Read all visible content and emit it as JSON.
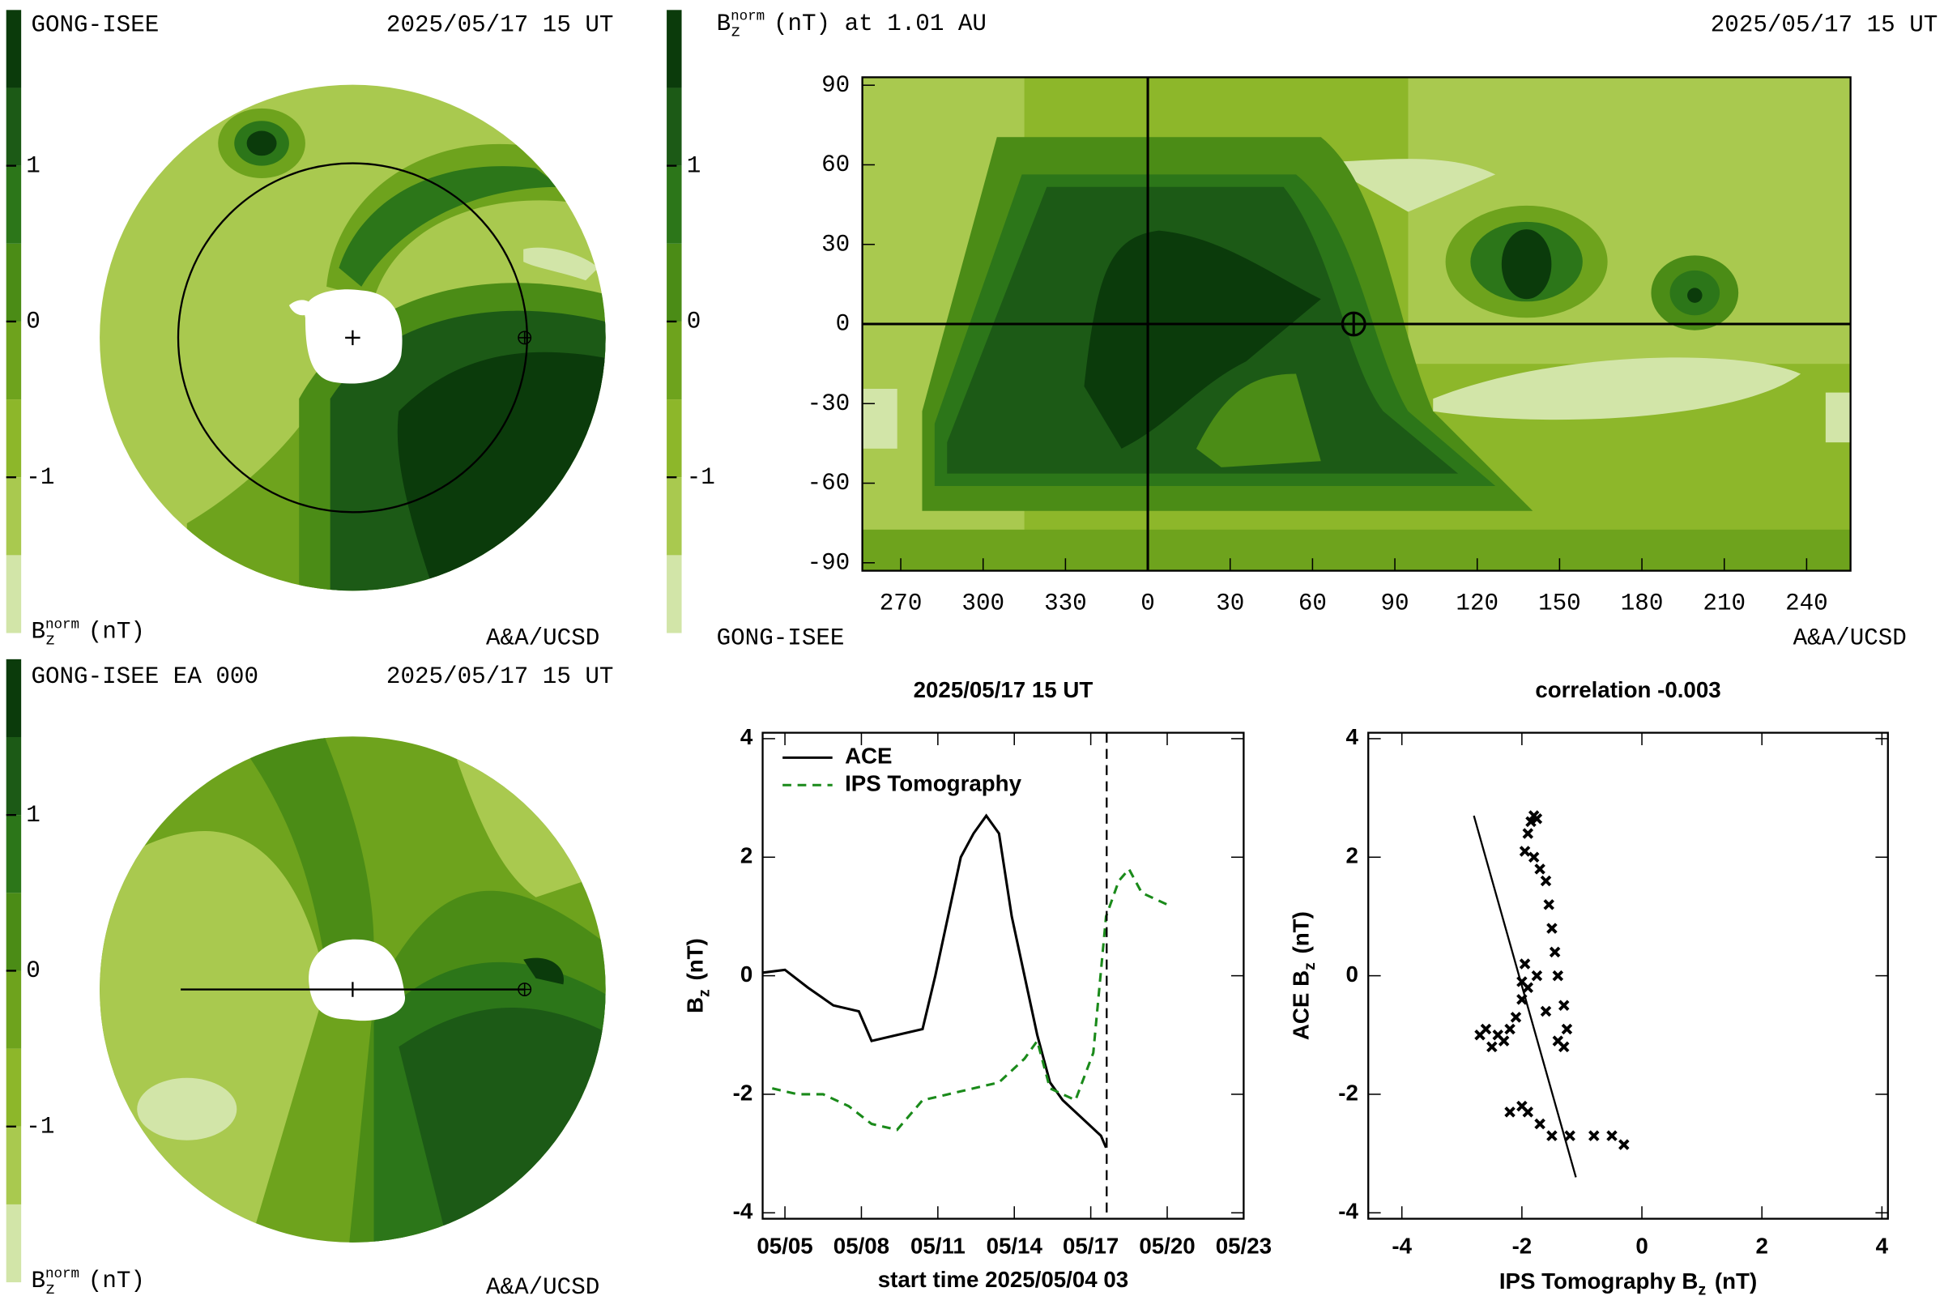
{
  "chart_data": [
    {
      "type": "polar-map",
      "title": "GONG-ISEE",
      "date": "2025/05/17 15 UT",
      "credit": "A&A/UCSD",
      "colorbar": {
        "label": {
          "base": "B",
          "sub": "z",
          "sup": "norm",
          "unit": "(nT)"
        },
        "ylim": [
          -2,
          2
        ],
        "yticks": [
          1,
          0,
          -1
        ],
        "colors": [
          "#d2e5a8",
          "#a9c94f",
          "#8db72a",
          "#6ea31d",
          "#4b8c16",
          "#2c7619",
          "#1c5a16",
          "#0b3b0b"
        ]
      }
    },
    {
      "type": "latlon-map",
      "title": {
        "base": "B",
        "sub": "z",
        "sup": "norm",
        "unit": "(nT) at 1.01 AU"
      },
      "date": "2025/05/17 15 UT",
      "source": "GONG-ISEE",
      "credit": "A&A/UCSD",
      "xlim": [
        -104,
        256
      ],
      "xticks": [
        {
          "value": -90,
          "label": "270"
        },
        {
          "value": -60,
          "label": "300"
        },
        {
          "value": -30,
          "label": "330"
        },
        0,
        30,
        60,
        90,
        120,
        150,
        180,
        210,
        240
      ],
      "ylim": [
        -93,
        93
      ],
      "yticks": [
        90,
        60,
        30,
        0,
        -30,
        -60,
        -90
      ],
      "earth": {
        "lon": 75,
        "lat": 0
      },
      "colorbar": {
        "ylim": [
          -2,
          2
        ],
        "yticks": [
          1,
          0,
          -1
        ],
        "colors": [
          "#d2e5a8",
          "#a9c94f",
          "#8db72a",
          "#6ea31d",
          "#4b8c16",
          "#2c7619",
          "#1c5a16",
          "#0b3b0b"
        ]
      }
    },
    {
      "type": "polar-map",
      "title": "GONG-ISEE EA 000",
      "date": "2025/05/17 15 UT",
      "credit": "A&A/UCSD",
      "colorbar": {
        "label": {
          "base": "B",
          "sub": "z",
          "sup": "norm",
          "unit": "(nT)"
        },
        "ylim": [
          -2,
          2
        ],
        "yticks": [
          1,
          0,
          -1
        ],
        "colors": [
          "#d2e5a8",
          "#a9c94f",
          "#8db72a",
          "#6ea31d",
          "#4b8c16",
          "#2c7619",
          "#1c5a16",
          "#0b3b0b"
        ]
      }
    },
    {
      "type": "line",
      "title": "2025/05/17 15 UT",
      "xlabel": "start time 2025/05/04 03",
      "ylabel": {
        "base": "B",
        "sub": "z",
        "unit": "(nT)"
      },
      "xlim": [
        4.125,
        23
      ],
      "xticks": [
        {
          "value": 5,
          "label": "05/05"
        },
        {
          "value": 8,
          "label": "05/08"
        },
        {
          "value": 11,
          "label": "05/11"
        },
        {
          "value": 14,
          "label": "05/14"
        },
        {
          "value": 17,
          "label": "05/17"
        },
        {
          "value": 20,
          "label": "05/20"
        },
        {
          "value": 23,
          "label": "05/23"
        }
      ],
      "ylim": [
        -4.1,
        4.1
      ],
      "yticks": [
        4,
        2,
        0,
        -2,
        -4
      ],
      "marker_x": 17.625,
      "series": [
        {
          "name": "ACE",
          "color": "#000000",
          "dashed": false,
          "x": [
            4.1,
            5,
            5.9,
            6.9,
            7.9,
            8.4,
            9.4,
            10.4,
            10.9,
            11.4,
            11.9,
            12.4,
            12.9,
            13.4,
            13.9,
            14.4,
            14.9,
            15.4,
            15.9,
            16.4,
            16.9,
            17.4,
            17.6
          ],
          "values": [
            0.05,
            0.1,
            -0.2,
            -0.5,
            -0.6,
            -1.1,
            -1.0,
            -0.9,
            0.0,
            1.0,
            2.0,
            2.4,
            2.7,
            2.4,
            1.0,
            0.0,
            -1.0,
            -1.8,
            -2.1,
            -2.3,
            -2.5,
            -2.7,
            -2.9
          ]
        },
        {
          "name": "IPS Tomography",
          "color": "#1a8a1a",
          "dashed": true,
          "x": [
            4.5,
            5.5,
            6.5,
            7.5,
            8.4,
            9.4,
            10.4,
            11.4,
            12.4,
            13.4,
            14.4,
            14.9,
            15.4,
            16.4,
            17.1,
            17.6,
            18.1,
            18.5,
            19,
            19.5,
            20
          ],
          "values": [
            -1.9,
            -2.0,
            -2.0,
            -2.2,
            -2.5,
            -2.6,
            -2.1,
            -2.0,
            -1.9,
            -1.8,
            -1.4,
            -1.1,
            -1.9,
            -2.1,
            -1.3,
            1.0,
            1.6,
            1.8,
            1.4,
            1.3,
            1.2
          ]
        }
      ]
    },
    {
      "type": "scatter",
      "title": "correlation -0.003",
      "xlabel": {
        "base": "IPS Tomography B",
        "sub": "z",
        "unit": "(nT)"
      },
      "ylabel": {
        "base": "ACE B",
        "sub": "z",
        "unit": "(nT)"
      },
      "xlim": [
        -4.56,
        4.1
      ],
      "xticks": [
        -4,
        -2,
        0,
        2,
        4
      ],
      "ylim": [
        -4.1,
        4.1
      ],
      "yticks": [
        4,
        2,
        0,
        -2,
        -4
      ],
      "color": "#000000",
      "x": [
        -1.8,
        -1.85,
        -1.75,
        -1.9,
        -1.95,
        -1.8,
        -1.7,
        -1.6,
        -1.55,
        -1.5,
        -1.45,
        -1.4,
        -1.3,
        -1.25,
        -1.3,
        -1.4,
        -1.6,
        -1.75,
        -1.9,
        -2.0,
        -2.1,
        -2.2,
        -2.4,
        -2.6,
        -2.7,
        -2.5,
        -2.3,
        -2.0,
        -1.95,
        -2.0,
        -2.2,
        -1.9,
        -1.7,
        -1.5,
        -1.2,
        -0.8,
        -0.5,
        -0.3
      ],
      "values": [
        2.7,
        2.6,
        2.65,
        2.4,
        2.1,
        2.0,
        1.8,
        1.6,
        1.2,
        0.8,
        0.4,
        0.0,
        -0.5,
        -0.9,
        -1.2,
        -1.1,
        -0.6,
        0.0,
        -0.2,
        -0.4,
        -0.7,
        -0.9,
        -1.0,
        -0.9,
        -1.0,
        -1.2,
        -1.1,
        -0.1,
        0.2,
        -2.2,
        -2.3,
        -2.3,
        -2.5,
        -2.7,
        -2.7,
        -2.7,
        -2.7,
        -2.85
      ],
      "fit": {
        "x": [
          -2.8,
          -1.1
        ],
        "values": [
          2.7,
          -3.4
        ]
      }
    }
  ]
}
